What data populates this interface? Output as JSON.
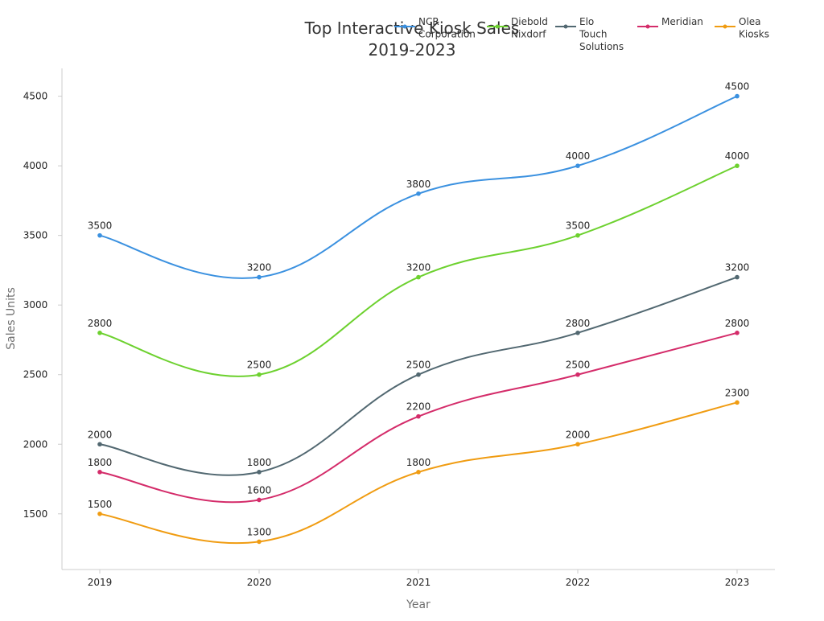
{
  "chart_data": {
    "type": "line",
    "title": [
      "Top Interactive Kiosk Sales",
      "2019-2023"
    ],
    "xlabel": "Year",
    "ylabel": "Sales Units",
    "categories": [
      "2019",
      "2020",
      "2021",
      "2022",
      "2023"
    ],
    "yticks": [
      1500,
      2000,
      2500,
      3000,
      3500,
      4000,
      4500
    ],
    "ylim": [
      1100,
      4700
    ],
    "grid": false,
    "legend_position": "top-right",
    "series": [
      {
        "name": [
          "NCR",
          "Corporation"
        ],
        "color": "#3b91e0",
        "values": [
          3500,
          3200,
          3800,
          4000,
          4500
        ]
      },
      {
        "name": [
          "Diebold",
          "Nixdorf"
        ],
        "color": "#6dd12f",
        "values": [
          2800,
          2500,
          3200,
          3500,
          4000
        ]
      },
      {
        "name": [
          "Elo",
          "Touch",
          "Solutions"
        ],
        "color": "#526871",
        "values": [
          2000,
          1800,
          2500,
          2800,
          3200
        ]
      },
      {
        "name": [
          "Meridian"
        ],
        "color": "#d42c6a",
        "values": [
          1800,
          1600,
          2200,
          2500,
          2800
        ]
      },
      {
        "name": [
          "Olea",
          "Kiosks"
        ],
        "color": "#f09c12",
        "values": [
          1500,
          1300,
          1800,
          2000,
          2300
        ]
      }
    ]
  }
}
